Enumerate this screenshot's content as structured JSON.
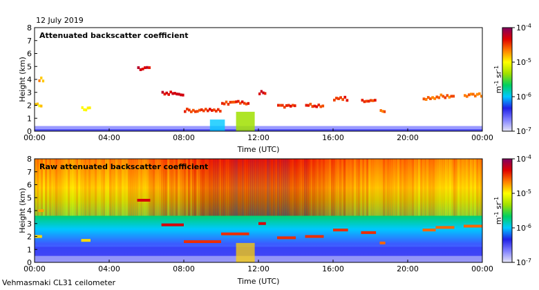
{
  "date_label": "12 July 2019",
  "footer_label": "Vehmasmaki CL31 ceilometer",
  "colormap": {
    "stops": [
      "#e6e6f7",
      "#8080ff",
      "#2020e6",
      "#00c8ff",
      "#00d060",
      "#a0e000",
      "#ffff00",
      "#ff8000",
      "#e00000",
      "#800060"
    ],
    "tick_labels": [
      "10",
      "10",
      "10",
      "10"
    ],
    "tick_exponents": [
      "-4",
      "-5",
      "-6",
      "-7"
    ],
    "unit_base": "m",
    "unit_exp1": "-1",
    "unit_mid": " sr",
    "unit_exp2": "-1"
  },
  "chart_data": [
    {
      "type": "heatmap",
      "title": "Attenuated backscatter coefficient",
      "xlabel": "Time (UTC)",
      "ylabel": "Height (km)",
      "x_ticks": [
        "00:00",
        "04:00",
        "08:00",
        "12:00",
        "16:00",
        "20:00",
        "00:00"
      ],
      "y_ticks": [
        "0",
        "1",
        "2",
        "3",
        "4",
        "5",
        "6",
        "7",
        "8"
      ],
      "xlim_hours": [
        0,
        24
      ],
      "ylim_km": [
        0,
        8
      ],
      "color_scale": "log",
      "color_range": [
        1e-07,
        0.0001
      ],
      "cloud_segments": [
        {
          "t0": 0.2,
          "t1": 0.5,
          "h": 4.0,
          "level": 0.75
        },
        {
          "t0": 0.0,
          "t1": 0.4,
          "h": 2.0,
          "level": 0.7
        },
        {
          "t0": 2.5,
          "t1": 3.0,
          "h": 1.7,
          "level": 0.7
        },
        {
          "t0": 5.5,
          "t1": 6.2,
          "h": 4.8,
          "level": 0.9
        },
        {
          "t0": 6.8,
          "t1": 8.0,
          "h": 2.9,
          "level": 0.9
        },
        {
          "t0": 8.0,
          "t1": 10.0,
          "h": 1.6,
          "level": 0.85
        },
        {
          "t0": 10.0,
          "t1": 11.5,
          "h": 2.2,
          "level": 0.85
        },
        {
          "t0": 12.0,
          "t1": 12.4,
          "h": 3.0,
          "level": 0.9
        },
        {
          "t0": 13.0,
          "t1": 14.0,
          "h": 1.9,
          "level": 0.85
        },
        {
          "t0": 14.5,
          "t1": 15.5,
          "h": 2.0,
          "level": 0.85
        },
        {
          "t0": 16.0,
          "t1": 16.8,
          "h": 2.5,
          "level": 0.85
        },
        {
          "t0": 17.5,
          "t1": 18.3,
          "h": 2.3,
          "level": 0.85
        },
        {
          "t0": 18.5,
          "t1": 18.8,
          "h": 1.5,
          "level": 0.8
        },
        {
          "t0": 20.8,
          "t1": 21.5,
          "h": 2.5,
          "level": 0.8
        },
        {
          "t0": 21.5,
          "t1": 22.5,
          "h": 2.7,
          "level": 0.8
        },
        {
          "t0": 23.0,
          "t1": 24.0,
          "h": 2.8,
          "level": 0.8
        }
      ]
    },
    {
      "type": "heatmap",
      "title": "Raw attenuated backscatter coefficient",
      "xlabel": "Time (UTC)",
      "ylabel": "Height (km)",
      "x_ticks": [
        "00:00",
        "04:00",
        "08:00",
        "12:00",
        "16:00",
        "20:00",
        "00:00"
      ],
      "y_ticks": [
        "0",
        "1",
        "2",
        "3",
        "4",
        "5",
        "6",
        "7",
        "8"
      ],
      "xlim_hours": [
        0,
        24
      ],
      "ylim_km": [
        0,
        8
      ],
      "color_scale": "log",
      "color_range": [
        1e-07,
        0.0001
      ]
    }
  ]
}
